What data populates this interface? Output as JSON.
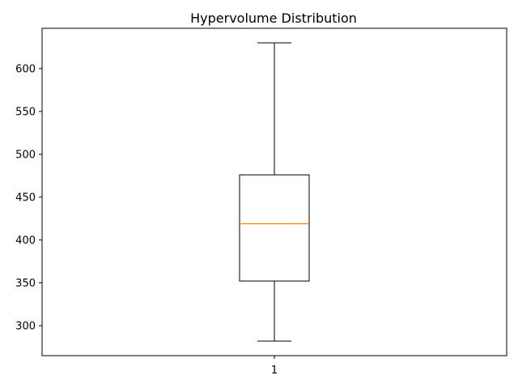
{
  "chart_data": {
    "type": "box",
    "title": "Hypervolume Distribution",
    "xlabel": "",
    "ylabel": "",
    "categories": [
      "1"
    ],
    "boxes": [
      {
        "category": "1",
        "whisker_low": 282,
        "q1": 352,
        "median": 419,
        "q3": 476,
        "whisker_high": 630
      }
    ],
    "yticks": [
      300,
      350,
      400,
      450,
      500,
      550,
      600
    ],
    "ylim": [
      265,
      647
    ],
    "grid": false,
    "colors": {
      "box": "#000000",
      "median": "#ff7f0e",
      "axes": "#000000",
      "background": "#ffffff"
    }
  }
}
